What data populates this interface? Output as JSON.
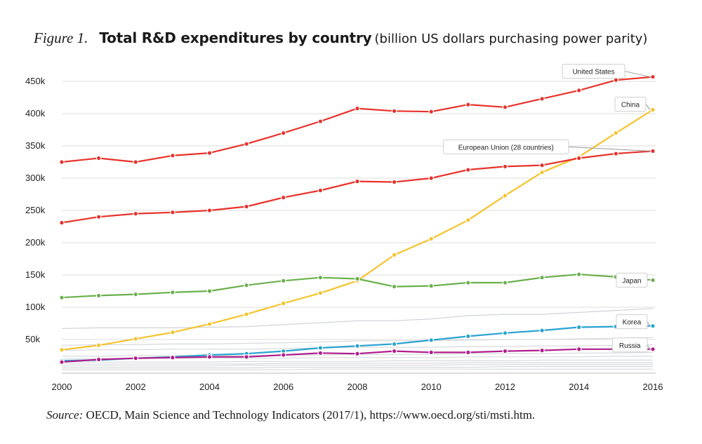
{
  "figure": {
    "label": "Figure 1.",
    "title": "Total R&D expenditures by country",
    "subtitle": "(billion US dollars purchasing power parity)"
  },
  "source": {
    "label": "Source:",
    "text": "OECD, Main Science and Technology Indicators (2017/1), https://www.oecd.org/sti/msti.htm."
  },
  "chart_data": {
    "type": "line",
    "title": "Total R&D expenditures by country",
    "xlabel": "",
    "ylabel": "",
    "x": [
      2000,
      2001,
      2002,
      2003,
      2004,
      2005,
      2006,
      2007,
      2008,
      2009,
      2010,
      2011,
      2012,
      2013,
      2014,
      2015,
      2016
    ],
    "xlim": [
      2000,
      2016
    ],
    "ylim": [
      0,
      450000
    ],
    "x_ticks": [
      "2000",
      "2002",
      "2004",
      "2006",
      "2008",
      "2010",
      "2012",
      "2014",
      "2016"
    ],
    "y_ticks": [
      {
        "value": 50000,
        "label": "50k"
      },
      {
        "value": 100000,
        "label": "100k"
      },
      {
        "value": 150000,
        "label": "150k"
      },
      {
        "value": 200000,
        "label": "200k"
      },
      {
        "value": 250000,
        "label": "250k"
      },
      {
        "value": 300000,
        "label": "300k"
      },
      {
        "value": 350000,
        "label": "350k"
      },
      {
        "value": 400000,
        "label": "400k"
      },
      {
        "value": 450000,
        "label": "450k"
      }
    ],
    "grid": true,
    "legend": "callouts at right end of each line",
    "series": [
      {
        "name": "United States",
        "color": "#e8322b",
        "values": [
          325000,
          331000,
          325000,
          335000,
          339000,
          353000,
          370000,
          388000,
          408000,
          404000,
          403000,
          414000,
          410000,
          423000,
          436000,
          452000,
          457000
        ]
      },
      {
        "name": "China",
        "color": "#f5c32c",
        "values": [
          34000,
          41000,
          51000,
          61000,
          74000,
          89000,
          106000,
          122000,
          141000,
          181000,
          206000,
          235000,
          273000,
          309000,
          333000,
          370000,
          406000
        ]
      },
      {
        "name": "European Union (28 countries)",
        "color": "#e8322b",
        "values": [
          231000,
          240000,
          245000,
          247000,
          250000,
          256000,
          270000,
          281000,
          295000,
          294000,
          300000,
          313000,
          318000,
          320000,
          331000,
          338000,
          342000
        ]
      },
      {
        "name": "Japan",
        "color": "#6ab04c",
        "values": [
          115000,
          118000,
          120000,
          123000,
          125000,
          134000,
          141000,
          146000,
          144000,
          132000,
          133000,
          138000,
          138000,
          146000,
          151000,
          147000,
          142000
        ]
      },
      {
        "name": "Korea",
        "color": "#2aa3d0",
        "values": [
          17000,
          18000,
          21000,
          23000,
          26000,
          28000,
          32000,
          37000,
          40000,
          43000,
          49000,
          55000,
          60000,
          64000,
          69000,
          70000,
          71000
        ]
      },
      {
        "name": "Russia",
        "color": "#b01e8c",
        "values": [
          15000,
          19000,
          21000,
          22000,
          23000,
          23000,
          26000,
          29000,
          28000,
          32000,
          30000,
          30000,
          32000,
          33000,
          35000,
          35000,
          35000
        ]
      }
    ],
    "background_series_values": [
      [
        67000,
        68000,
        68000,
        68000,
        69000,
        70000,
        73000,
        76000,
        79000,
        79000,
        82000,
        87000,
        89000,
        89000,
        92000,
        95000,
        98000
      ],
      [
        41000,
        42000,
        42000,
        43000,
        43000,
        44000,
        45000,
        46000,
        48000,
        48000,
        48000,
        49000,
        50000,
        50000,
        51000,
        52000,
        53000
      ],
      [
        33000,
        34000,
        34000,
        35000,
        35000,
        35000,
        36000,
        37000,
        38000,
        38000,
        38000,
        39000,
        39000,
        40000,
        40000,
        41000,
        42000
      ],
      [
        24000,
        24000,
        25000,
        25000,
        25000,
        25000,
        26000,
        26000,
        27000,
        27000,
        27000,
        28000,
        28000,
        28000,
        29000,
        29000,
        30000
      ],
      [
        20000,
        20000,
        20000,
        21000,
        21000,
        21000,
        21000,
        22000,
        22000,
        22000,
        22000,
        23000,
        23000,
        23000,
        23000,
        24000,
        24000
      ],
      [
        15000,
        15000,
        15000,
        15000,
        15000,
        16000,
        16000,
        16000,
        16000,
        17000,
        17000,
        17000,
        17000,
        18000,
        18000,
        18000,
        18000
      ],
      [
        12000,
        12000,
        12000,
        12000,
        12000,
        12000,
        13000,
        13000,
        13000,
        13000,
        13000,
        14000,
        14000,
        14000,
        14000,
        14000,
        14000
      ],
      [
        9000,
        9000,
        9000,
        9000,
        9000,
        10000,
        10000,
        10000,
        10000,
        10000,
        10000,
        11000,
        11000,
        11000,
        11000,
        11000,
        11000
      ],
      [
        6000,
        6000,
        6000,
        6000,
        6000,
        6000,
        7000,
        7000,
        7000,
        7000,
        7000,
        7000,
        8000,
        8000,
        8000,
        8000,
        8000
      ],
      [
        3000,
        3000,
        3000,
        3000,
        3000,
        3000,
        3000,
        4000,
        4000,
        4000,
        4000,
        4000,
        4000,
        4000,
        4000,
        4000,
        4000
      ]
    ]
  }
}
